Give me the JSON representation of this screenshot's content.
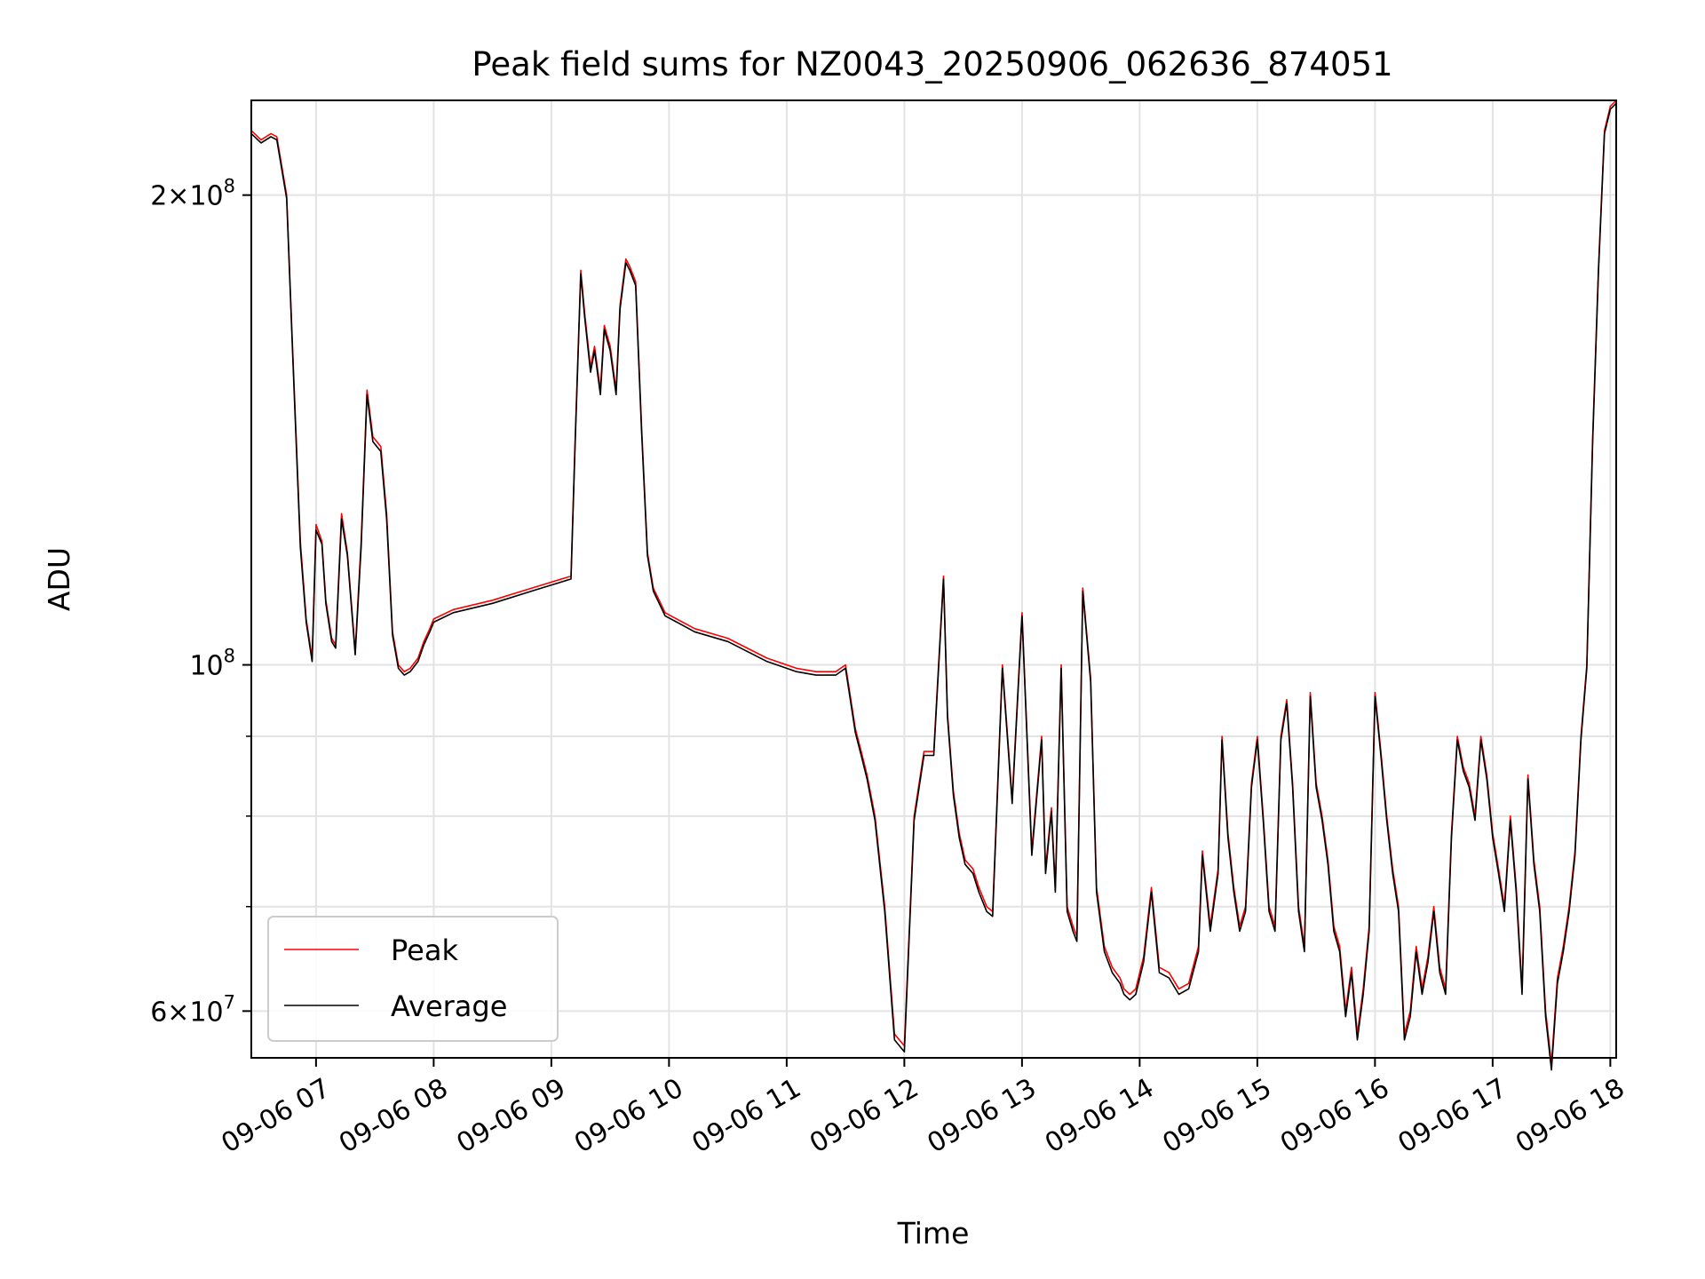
{
  "chart_data": {
    "type": "line",
    "title": "Peak field sums for NZ0043_20250906_062636_874051",
    "xlabel": "Time",
    "ylabel": "ADU",
    "yscale": "log",
    "xlim": [
      "09-06 06:27",
      "09-06 18:03"
    ],
    "ylim": [
      56000000,
      230000000
    ],
    "grid": true,
    "legend_position": "lower-left",
    "x_ticks": [
      "09-06 07",
      "09-06 08",
      "09-06 09",
      "09-06 10",
      "09-06 11",
      "09-06 12",
      "09-06 13",
      "09-06 14",
      "09-06 15",
      "09-06 16",
      "09-06 17",
      "09-06 18"
    ],
    "y_ticks": [
      {
        "value": 200000000,
        "mantissa": "2",
        "exp": "8"
      },
      {
        "value": 100000000,
        "mantissa": "",
        "exp": "8"
      },
      {
        "value": 60000000,
        "mantissa": "6",
        "exp": "7"
      }
    ],
    "y_minor_ticks": [
      90000000,
      80000000,
      70000000
    ],
    "x": [
      "06:27",
      "06:32",
      "06:37",
      "06:40",
      "06:45",
      "06:48",
      "06:52",
      "06:55",
      "06:58",
      "07:00",
      "07:03",
      "07:05",
      "07:08",
      "07:10",
      "07:13",
      "07:16",
      "07:20",
      "07:23",
      "07:26",
      "07:29",
      "07:33",
      "07:36",
      "07:39",
      "07:42",
      "07:45",
      "07:48",
      "07:52",
      "07:55",
      "07:58",
      "08:00",
      "08:10",
      "08:30",
      "08:50",
      "09:10",
      "09:12",
      "09:15",
      "09:17",
      "09:20",
      "09:22",
      "09:25",
      "09:27",
      "09:30",
      "09:33",
      "09:35",
      "09:38",
      "09:40",
      "09:43",
      "09:46",
      "09:49",
      "09:52",
      "09:55",
      "09:58",
      "10:01",
      "10:04",
      "10:07",
      "10:10",
      "10:13",
      "10:30",
      "10:50",
      "11:05",
      "11:15",
      "11:25",
      "11:30",
      "11:35",
      "11:38",
      "11:41",
      "11:45",
      "11:50",
      "11:55",
      "12:00",
      "12:05",
      "12:10",
      "12:15",
      "12:20",
      "12:22",
      "12:25",
      "12:28",
      "12:31",
      "12:35",
      "12:38",
      "12:40",
      "12:42",
      "12:45",
      "12:50",
      "12:55",
      "13:00",
      "13:05",
      "13:10",
      "13:12",
      "13:15",
      "13:17",
      "13:20",
      "13:23",
      "13:26",
      "13:28",
      "13:31",
      "13:35",
      "13:38",
      "13:42",
      "13:46",
      "13:50",
      "13:52",
      "13:55",
      "13:58",
      "14:02",
      "14:06",
      "14:10",
      "14:15",
      "14:20",
      "14:25",
      "14:30",
      "14:32",
      "14:36",
      "14:40",
      "14:42",
      "14:45",
      "14:48",
      "14:51",
      "14:54",
      "14:57",
      "15:00",
      "15:03",
      "15:06",
      "15:09",
      "15:12",
      "15:15",
      "15:18",
      "15:21",
      "15:24",
      "15:27",
      "15:30",
      "15:33",
      "15:36",
      "15:39",
      "15:42",
      "15:45",
      "15:48",
      "15:51",
      "15:54",
      "15:57",
      "16:00",
      "16:03",
      "16:06",
      "16:09",
      "16:12",
      "16:15",
      "16:18",
      "16:21",
      "16:24",
      "16:27",
      "16:30",
      "16:33",
      "16:36",
      "16:39",
      "16:42",
      "16:45",
      "16:48",
      "16:51",
      "16:54",
      "16:57",
      "17:00",
      "17:03",
      "17:06",
      "17:09",
      "17:12",
      "17:15",
      "17:18",
      "17:21",
      "17:24",
      "17:27",
      "17:30",
      "17:33",
      "17:36",
      "17:39",
      "17:42",
      "17:45",
      "17:48",
      "17:51",
      "17:54",
      "17:57",
      "18:00",
      "18:03"
    ],
    "series": [
      {
        "name": "Peak",
        "color": "#ff0000",
        "values": [
          220000000,
          217000000,
          219000000,
          218000000,
          200000000,
          160000000,
          120000000,
          107000000,
          101000000,
          123000000,
          120000000,
          110000000,
          104000000,
          103000000,
          125000000,
          118000000,
          102000000,
          120000000,
          150000000,
          140000000,
          138000000,
          125000000,
          105000000,
          100000000,
          99000000,
          99500000,
          101000000,
          103500000,
          105500000,
          107000000,
          108500000,
          110000000,
          112000000,
          114000000,
          138000000,
          179000000,
          168000000,
          155000000,
          160000000,
          150000000,
          165000000,
          160000000,
          150000000,
          170000000,
          182000000,
          180000000,
          176000000,
          142000000,
          118000000,
          112000000,
          110000000,
          108000000,
          107500000,
          107000000,
          106500000,
          106000000,
          105500000,
          104000000,
          101000000,
          99500000,
          99000000,
          99000000,
          100000000,
          91000000,
          88000000,
          85000000,
          80000000,
          70000000,
          58000000,
          57000000,
          80000000,
          88000000,
          88000000,
          114000000,
          93000000,
          83000000,
          78000000,
          75000000,
          74000000,
          72000000,
          71000000,
          70000000,
          69500000,
          100000000,
          82000000,
          108000000,
          76000000,
          90000000,
          74000000,
          81000000,
          72000000,
          100000000,
          70000000,
          68000000,
          67000000,
          112000000,
          98000000,
          72000000,
          66000000,
          64000000,
          63000000,
          62000000,
          61500000,
          62000000,
          65000000,
          72000000,
          64000000,
          63500000,
          62000000,
          62500000,
          66000000,
          76000000,
          68000000,
          74000000,
          90000000,
          78000000,
          72000000,
          68000000,
          70000000,
          84000000,
          90000000,
          80000000,
          70000000,
          68000000,
          90000000,
          95000000,
          84000000,
          70000000,
          66000000,
          96000000,
          84000000,
          80000000,
          75000000,
          68000000,
          66000000,
          60000000,
          64000000,
          58000000,
          62000000,
          68000000,
          96000000,
          88000000,
          80000000,
          74000000,
          70000000,
          58000000,
          60000000,
          66000000,
          62000000,
          65000000,
          70000000,
          64000000,
          62000000,
          78000000,
          90000000,
          86000000,
          84000000,
          80000000,
          90000000,
          85000000,
          78000000,
          74000000,
          70000000,
          80000000,
          72000000,
          62000000,
          85000000,
          75000000,
          70000000,
          60000000,
          55500000,
          63000000,
          66000000,
          70000000,
          76000000,
          90000000,
          100000000,
          140000000,
          180000000,
          220000000,
          228000000,
          230000000
        ]
      },
      {
        "name": "Average",
        "color": "#000000",
        "values": [
          219000000,
          216000000,
          218000000,
          217000000,
          199000000,
          159000000,
          119000000,
          106500000,
          100500000,
          122000000,
          119500000,
          109500000,
          103500000,
          102500000,
          124000000,
          117500000,
          101500000,
          119000000,
          149000000,
          139000000,
          137000000,
          124000000,
          104500000,
          99500000,
          98500000,
          99000000,
          100500000,
          103000000,
          105000000,
          106500000,
          108000000,
          109500000,
          111500000,
          113500000,
          137000000,
          178000000,
          167000000,
          154000000,
          159000000,
          149000000,
          164000000,
          159000000,
          149000000,
          169000000,
          181000000,
          179000000,
          175000000,
          141000000,
          117500000,
          111500000,
          109500000,
          107500000,
          107000000,
          106500000,
          106000000,
          105500000,
          105000000,
          103500000,
          100500000,
          99000000,
          98500000,
          98500000,
          99500000,
          90500000,
          87500000,
          84500000,
          79500000,
          69500000,
          57500000,
          56500000,
          79500000,
          87500000,
          87500000,
          113500000,
          92500000,
          82500000,
          77500000,
          74500000,
          73500000,
          71500000,
          70500000,
          69500000,
          69000000,
          99500000,
          81500000,
          107500000,
          75500000,
          89500000,
          73500000,
          80500000,
          71500000,
          99500000,
          69500000,
          67500000,
          66500000,
          111500000,
          97500000,
          71500000,
          65500000,
          63500000,
          62500000,
          61500000,
          61000000,
          61500000,
          64500000,
          71500000,
          63500000,
          63000000,
          61500000,
          62000000,
          65500000,
          75500000,
          67500000,
          73500000,
          89500000,
          77500000,
          71500000,
          67500000,
          69500000,
          83500000,
          89500000,
          79500000,
          69500000,
          67500000,
          89500000,
          94500000,
          83500000,
          69500000,
          65500000,
          95500000,
          83500000,
          79500000,
          74500000,
          67500000,
          65500000,
          59500000,
          63500000,
          57500000,
          61500000,
          67500000,
          95500000,
          87500000,
          79500000,
          73500000,
          69500000,
          57500000,
          59500000,
          65500000,
          61500000,
          64500000,
          69500000,
          63500000,
          61500000,
          77500000,
          89500000,
          85500000,
          83500000,
          79500000,
          89500000,
          84500000,
          77500000,
          73500000,
          69500000,
          79500000,
          71500000,
          61500000,
          84500000,
          74500000,
          69500000,
          59500000,
          55000000,
          62500000,
          65500000,
          69500000,
          75500000,
          89500000,
          99500000,
          139000000,
          179000000,
          219000000,
          227000000,
          229000000
        ]
      }
    ]
  }
}
